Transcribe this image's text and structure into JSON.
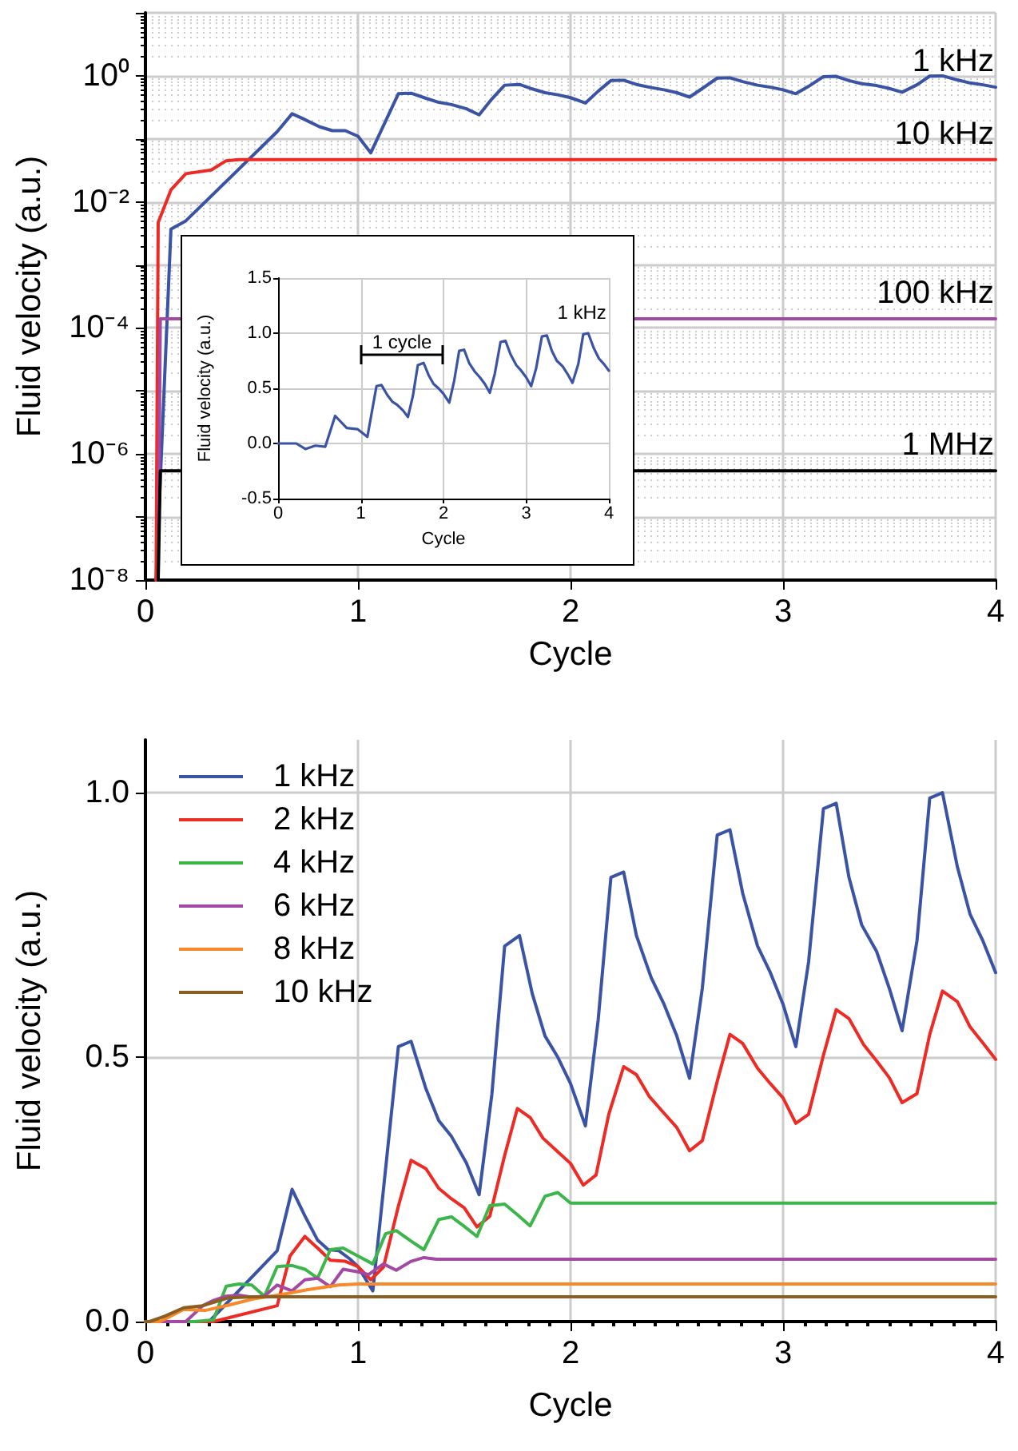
{
  "chart_data": [
    {
      "type": "line",
      "xlabel": "Cycle",
      "ylabel": "Fluid velocity (a.u.)",
      "log": "y",
      "grid": true,
      "xlim": [
        0,
        4
      ],
      "xticks": [
        0,
        1,
        2,
        3,
        4
      ],
      "ylim": [
        1e-08,
        10
      ],
      "yticks": [
        {
          "value": 1e-08,
          "label": "10⁻⁸"
        },
        {
          "value": 1e-07,
          "label": null
        },
        {
          "value": 1e-06,
          "label": "10⁻⁶"
        },
        {
          "value": 1e-05,
          "label": null
        },
        {
          "value": 0.0001,
          "label": "10⁻⁴"
        },
        {
          "value": 0.001,
          "label": null
        },
        {
          "value": 0.01,
          "label": "10⁻²"
        },
        {
          "value": 0.1,
          "label": null
        },
        {
          "value": 1,
          "label": "10⁰"
        },
        {
          "value": 10,
          "label": null
        }
      ],
      "series": [
        {
          "name": "1 kHz",
          "color": "#3a53a4",
          "x": [
            0.05,
            0.12,
            0.19,
            0.62,
            0.69,
            0.74,
            0.82,
            0.88,
            0.94,
            1.0,
            1.06,
            1.19,
            1.25,
            1.32,
            1.38,
            1.44,
            1.51,
            1.57,
            1.63,
            1.69,
            1.76,
            1.82,
            1.88,
            1.94,
            2.0,
            2.07,
            2.13,
            2.19,
            2.25,
            2.31,
            2.38,
            2.44,
            2.5,
            2.56,
            2.62,
            2.69,
            2.75,
            2.81,
            2.88,
            2.94,
            3.0,
            3.06,
            3.12,
            3.19,
            3.25,
            3.31,
            3.37,
            3.44,
            3.5,
            3.56,
            3.63,
            3.69,
            3.75,
            3.82,
            3.88,
            3.94,
            4.0
          ],
          "values": [
            1e-08,
            0.0037,
            0.005,
            0.13,
            0.25,
            0.21,
            0.155,
            0.135,
            0.135,
            0.11,
            0.06,
            0.52,
            0.53,
            0.44,
            0.38,
            0.35,
            0.3,
            0.24,
            0.43,
            0.71,
            0.73,
            0.62,
            0.54,
            0.5,
            0.45,
            0.37,
            0.57,
            0.84,
            0.85,
            0.73,
            0.65,
            0.6,
            0.54,
            0.46,
            0.63,
            0.92,
            0.93,
            0.81,
            0.71,
            0.66,
            0.6,
            0.52,
            0.68,
            0.97,
            0.98,
            0.84,
            0.75,
            0.7,
            0.63,
            0.55,
            0.72,
            0.99,
            1.0,
            0.86,
            0.77,
            0.72,
            0.66
          ]
        },
        {
          "name": "10 kHz",
          "color": "#ee2a24",
          "x": [
            0.05,
            0.06,
            0.12,
            0.19,
            0.31,
            0.38,
            0.44,
            4.0
          ],
          "values": [
            1e-08,
            0.0047,
            0.0155,
            0.028,
            0.032,
            0.045,
            0.047,
            0.047
          ]
        },
        {
          "name": "100 kHz",
          "color": "#a349a4",
          "x": [
            0.06,
            0.07,
            4.0
          ],
          "values": [
            1e-08,
            0.00014,
            0.00014
          ]
        },
        {
          "name": "1 MHz",
          "color": "#000000",
          "x": [
            0.06,
            0.07,
            4.0
          ],
          "values": [
            1e-08,
            5.4e-07,
            5.4e-07
          ]
        }
      ]
    },
    {
      "type": "line",
      "xlabel": "Cycle",
      "ylabel": "Fluid velocity (a.u.)",
      "grid": true,
      "xlim": [
        0,
        4
      ],
      "xticks": [
        0,
        1,
        2,
        3,
        4
      ],
      "ylim": [
        -0.5,
        1.5
      ],
      "yticks": [
        -0.5,
        {
          "value": 0,
          "label": "0.0"
        },
        0.5,
        {
          "value": 1,
          "label": "1.0"
        },
        1.5
      ],
      "annotations": [
        "1 cycle"
      ],
      "series": [
        {
          "name": "1 kHz",
          "color": "#3a53a4",
          "x": [
            0,
            0.22,
            0.33,
            0.45,
            0.57,
            0.69,
            0.83,
            0.96,
            1.08,
            1.19,
            1.25,
            1.32,
            1.38,
            1.44,
            1.51,
            1.57,
            1.63,
            1.69,
            1.76,
            1.82,
            1.88,
            1.94,
            2.0,
            2.07,
            2.13,
            2.19,
            2.25,
            2.31,
            2.38,
            2.44,
            2.5,
            2.56,
            2.62,
            2.69,
            2.75,
            2.81,
            2.88,
            2.94,
            3.0,
            3.06,
            3.12,
            3.19,
            3.25,
            3.31,
            3.37,
            3.44,
            3.5,
            3.56,
            3.63,
            3.69,
            3.75,
            3.82,
            3.88,
            3.94,
            4.0
          ],
          "values": [
            0,
            0,
            -0.05,
            -0.02,
            -0.03,
            0.25,
            0.14,
            0.13,
            0.06,
            0.52,
            0.53,
            0.44,
            0.38,
            0.35,
            0.3,
            0.24,
            0.43,
            0.71,
            0.73,
            0.62,
            0.54,
            0.5,
            0.45,
            0.37,
            0.57,
            0.84,
            0.85,
            0.73,
            0.65,
            0.6,
            0.54,
            0.46,
            0.63,
            0.92,
            0.93,
            0.81,
            0.71,
            0.66,
            0.6,
            0.52,
            0.68,
            0.97,
            0.98,
            0.84,
            0.75,
            0.7,
            0.63,
            0.55,
            0.72,
            0.99,
            1.0,
            0.86,
            0.77,
            0.72,
            0.66
          ]
        }
      ]
    },
    {
      "type": "line",
      "xlabel": "Cycle",
      "ylabel": "Fluid velocity (a.u.)",
      "grid": true,
      "legend": "top left",
      "xlim": [
        0,
        4
      ],
      "xticks": [
        0,
        1,
        2,
        3,
        4
      ],
      "ylim": [
        0,
        1.1
      ],
      "yticks": [
        {
          "value": 0,
          "label": "0.0"
        },
        0.5,
        {
          "value": 1,
          "label": "1.0"
        }
      ],
      "series": [
        {
          "name": "1 kHz",
          "color": "#3a53a4",
          "x": [
            0,
            0.3,
            0.62,
            0.69,
            0.75,
            0.81,
            0.86,
            0.91,
            0.96,
            1.0,
            1.07,
            1.19,
            1.25,
            1.32,
            1.38,
            1.44,
            1.51,
            1.57,
            1.63,
            1.69,
            1.76,
            1.82,
            1.88,
            1.94,
            2.0,
            2.07,
            2.13,
            2.19,
            2.25,
            2.31,
            2.38,
            2.44,
            2.5,
            2.56,
            2.62,
            2.69,
            2.75,
            2.81,
            2.88,
            2.94,
            3.0,
            3.06,
            3.12,
            3.19,
            3.25,
            3.31,
            3.37,
            3.44,
            3.5,
            3.56,
            3.63,
            3.69,
            3.75,
            3.82,
            3.88,
            3.94,
            4.0
          ],
          "values": [
            0,
            0,
            0.134,
            0.25,
            0.2,
            0.154,
            0.136,
            0.134,
            0.119,
            0.104,
            0.058,
            0.52,
            0.53,
            0.44,
            0.38,
            0.35,
            0.3,
            0.24,
            0.43,
            0.71,
            0.73,
            0.62,
            0.54,
            0.5,
            0.45,
            0.37,
            0.57,
            0.84,
            0.85,
            0.73,
            0.65,
            0.6,
            0.54,
            0.46,
            0.63,
            0.92,
            0.93,
            0.81,
            0.71,
            0.66,
            0.6,
            0.52,
            0.68,
            0.97,
            0.98,
            0.84,
            0.75,
            0.7,
            0.63,
            0.55,
            0.72,
            0.99,
            1.0,
            0.86,
            0.77,
            0.72,
            0.66
          ]
        },
        {
          "name": "2 kHz",
          "color": "#ee2a24",
          "x": [
            0,
            0.32,
            0.62,
            0.68,
            0.75,
            0.81,
            0.87,
            0.94,
            1.0,
            1.06,
            1.12,
            1.19,
            1.25,
            1.32,
            1.38,
            1.44,
            1.5,
            1.56,
            1.62,
            1.69,
            1.75,
            1.81,
            1.87,
            1.94,
            2.0,
            2.06,
            2.12,
            2.18,
            2.25,
            2.31,
            2.37,
            2.44,
            2.5,
            2.56,
            2.62,
            2.69,
            2.75,
            2.81,
            2.88,
            2.94,
            3.0,
            3.06,
            3.12,
            3.19,
            3.25,
            3.31,
            3.38,
            3.44,
            3.5,
            3.56,
            3.63,
            3.69,
            3.75,
            3.82,
            3.88,
            3.94,
            4.0
          ],
          "values": [
            0,
            0,
            0.03,
            0.124,
            0.161,
            0.139,
            0.116,
            0.114,
            0.104,
            0.079,
            0.103,
            0.218,
            0.305,
            0.289,
            0.252,
            0.232,
            0.215,
            0.179,
            0.199,
            0.314,
            0.403,
            0.386,
            0.347,
            0.321,
            0.299,
            0.258,
            0.277,
            0.392,
            0.482,
            0.467,
            0.426,
            0.394,
            0.367,
            0.323,
            0.342,
            0.454,
            0.543,
            0.526,
            0.479,
            0.45,
            0.423,
            0.375,
            0.392,
            0.504,
            0.59,
            0.573,
            0.523,
            0.493,
            0.461,
            0.414,
            0.431,
            0.543,
            0.625,
            0.605,
            0.557,
            0.527,
            0.496
          ]
        },
        {
          "name": "4 kHz",
          "color": "#3cb54a",
          "x": [
            0,
            0.23,
            0.32,
            0.38,
            0.44,
            0.5,
            0.56,
            0.62,
            0.69,
            0.75,
            0.81,
            0.87,
            0.93,
            1.0,
            1.07,
            1.13,
            1.18,
            1.25,
            1.31,
            1.38,
            1.44,
            1.5,
            1.56,
            1.62,
            1.69,
            1.75,
            1.81,
            1.88,
            1.94,
            2.0,
            4.0
          ],
          "values": [
            0,
            0,
            0.003,
            0.067,
            0.071,
            0.069,
            0.048,
            0.104,
            0.106,
            0.099,
            0.082,
            0.136,
            0.139,
            0.124,
            0.109,
            0.166,
            0.172,
            0.152,
            0.136,
            0.193,
            0.198,
            0.18,
            0.161,
            0.219,
            0.222,
            0.202,
            0.181,
            0.237,
            0.244,
            0.224,
            0.224
          ]
        },
        {
          "name": "6 kHz",
          "color": "#a349a4",
          "x": [
            0,
            0.19,
            0.27,
            0.32,
            0.38,
            0.44,
            0.5,
            0.56,
            0.62,
            0.69,
            0.75,
            0.81,
            0.87,
            0.93,
            1.0,
            1.05,
            1.12,
            1.18,
            1.25,
            1.31,
            1.37,
            4.0
          ],
          "values": [
            0,
            0,
            0.03,
            0.04,
            0.048,
            0.05,
            0.046,
            0.048,
            0.069,
            0.058,
            0.079,
            0.082,
            0.066,
            0.099,
            0.094,
            0.089,
            0.109,
            0.097,
            0.114,
            0.121,
            0.118,
            0.118
          ]
        },
        {
          "name": "8 kHz",
          "color": "#f7892b",
          "x": [
            0,
            0.07,
            0.18,
            0.28,
            0.39,
            0.51,
            0.64,
            0.76,
            0.91,
            1.0,
            4.0
          ],
          "values": [
            0,
            0,
            0.023,
            0.021,
            0.031,
            0.043,
            0.051,
            0.06,
            0.069,
            0.071,
            0.071
          ]
        },
        {
          "name": "10 kHz",
          "color": "#8b5e22",
          "x": [
            0,
            0.02,
            0.09,
            0.18,
            0.27,
            0.39,
            0.51,
            4.0
          ],
          "values": [
            0,
            0,
            0.01,
            0.026,
            0.03,
            0.045,
            0.047,
            0.047
          ]
        }
      ]
    }
  ]
}
